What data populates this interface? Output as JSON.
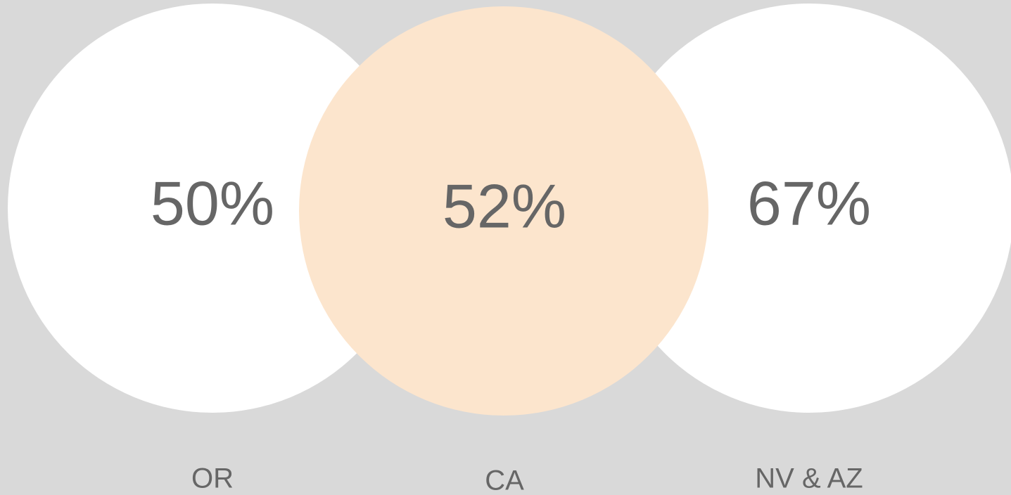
{
  "stats": [
    {
      "value": "50%",
      "label": "OR"
    },
    {
      "value": "52%",
      "label": "CA"
    },
    {
      "value": "67%",
      "label": "NV & AZ"
    }
  ]
}
